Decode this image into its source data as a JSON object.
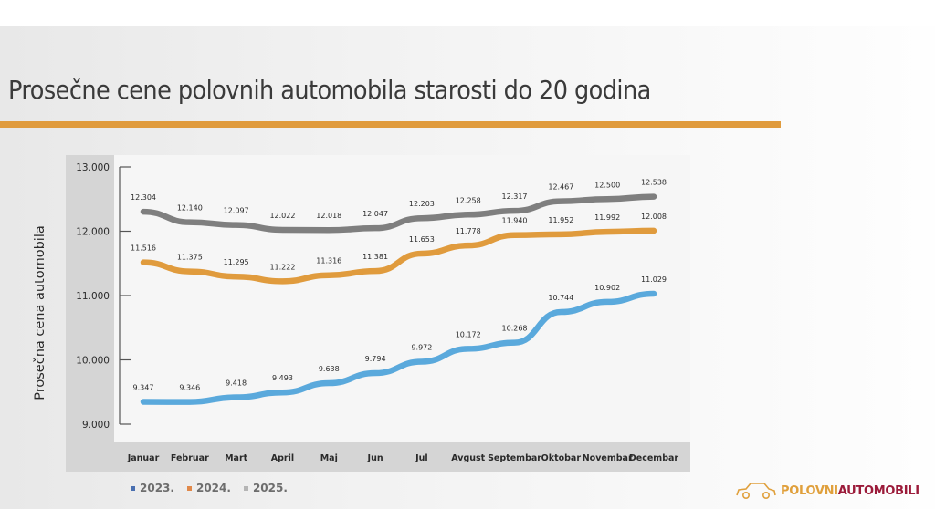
{
  "title": "Prosečne cene polovnih automobila starosti do 20 godina",
  "colors": {
    "accent_rule": "#e09b3d",
    "series_2023": "#5aa9dc",
    "series_2024": "#e09b3d",
    "series_2025": "#7f7f7f"
  },
  "logo": {
    "icon": "car-outline-icon",
    "part1": "POLOVNI",
    "part2": "AUTOMOBILI"
  },
  "chart_data": {
    "type": "line",
    "title": "Prosečne cene polovnih automobila starosti do 20 godina",
    "xlabel": "",
    "ylabel": "Prosečna cena automobila",
    "categories": [
      "Januar",
      "Februar",
      "Mart",
      "April",
      "Maj",
      "Jun",
      "Jul",
      "Avgust",
      "Septembar",
      "Oktobar",
      "Novembar",
      "Decembar"
    ],
    "ylim": [
      9000,
      13000
    ],
    "yticks": [
      9000,
      10000,
      11000,
      12000,
      13000
    ],
    "ytick_labels": [
      "9.000",
      "10.000",
      "11.000",
      "12.000",
      "13.000"
    ],
    "grid": false,
    "legend_position": "bottom-left",
    "series": [
      {
        "name": "2023.",
        "color": "#5aa9dc",
        "values": [
          9347,
          9346,
          9418,
          9493,
          9638,
          9794,
          9972,
          10172,
          10268,
          10744,
          10902,
          11029
        ],
        "labels": [
          "9.347",
          "9.346",
          "9.418",
          "9.493",
          "9.638",
          "9.794",
          "9.972",
          "10.172",
          "10.268",
          "10.744",
          "10.902",
          "11.029"
        ]
      },
      {
        "name": "2024.",
        "color": "#e09b3d",
        "values": [
          11516,
          11375,
          11295,
          11222,
          11316,
          11381,
          11653,
          11778,
          11940,
          11952,
          11992,
          12008
        ],
        "labels": [
          "11.516",
          "11.375",
          "11.295",
          "11.222",
          "11.316",
          "11.381",
          "11.653",
          "11.778",
          "11.940",
          "11.952",
          "11.992",
          "12.008"
        ]
      },
      {
        "name": "2025.",
        "color": "#7f7f7f",
        "values": [
          12304,
          12140,
          12097,
          12022,
          12018,
          12047,
          12203,
          12258,
          12317,
          12467,
          12500,
          12538
        ],
        "labels": [
          "12.304",
          "12.140",
          "12.097",
          "12.022",
          "12.018",
          "12.047",
          "12.203",
          "12.258",
          "12.317",
          "12.467",
          "12.500",
          "12.538"
        ]
      }
    ]
  }
}
